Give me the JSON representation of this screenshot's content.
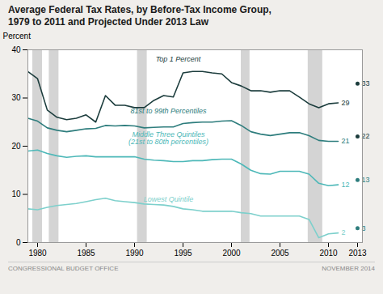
{
  "chart_data": {
    "type": "line",
    "title": "Average Federal Tax Rates, by Before-Tax Income Group,\n1979 to 2011 and Projected Under 2013 Law",
    "ylabel": "Percent",
    "xlim": [
      1979,
      2013.5
    ],
    "ylim": [
      0,
      40
    ],
    "xticks": [
      1980,
      1985,
      1990,
      1995,
      2000,
      2005,
      2010,
      2013
    ],
    "yticks": [
      0,
      10,
      20,
      30,
      40
    ],
    "grid": false,
    "background": "#f0eeeb",
    "plot_background": "#ffffff",
    "band_color": "#d4d4d4",
    "recession_bands": [
      [
        1979.5,
        1980.5
      ],
      [
        1981.2,
        1982.2
      ],
      [
        1990.3,
        1991.3
      ],
      [
        2001.0,
        2001.9
      ],
      [
        2007.9,
        2009.4
      ]
    ],
    "projected_x": 2013,
    "x": [
      1979,
      1980,
      1981,
      1982,
      1983,
      1984,
      1985,
      1986,
      1987,
      1988,
      1989,
      1990,
      1991,
      1992,
      1993,
      1994,
      1995,
      1996,
      1997,
      1998,
      1999,
      2000,
      2001,
      2002,
      2003,
      2004,
      2005,
      2006,
      2007,
      2008,
      2009,
      2010,
      2011
    ],
    "series": [
      {
        "name": "Top 1 Percent",
        "color": "#1c3d3d",
        "label_x": 1994.5,
        "label_y": 37.5,
        "end_2011": 29,
        "projected_value": 33,
        "dot_color": "#1c3d3d",
        "values": [
          35.5,
          34.0,
          27.5,
          26.0,
          25.5,
          25.8,
          26.5,
          25.0,
          30.5,
          28.5,
          28.5,
          28.0,
          28.0,
          29.5,
          30.5,
          30.2,
          35.2,
          35.5,
          35.5,
          35.2,
          35.0,
          33.2,
          32.5,
          31.5,
          31.5,
          31.2,
          31.5,
          31.5,
          30.2,
          28.8,
          28.0,
          28.8,
          29.0
        ]
      },
      {
        "name": "81st to 99th Percentiles",
        "color": "#2e7d7d",
        "label_x": 1993.5,
        "label_y": 26.8,
        "end_2011": 21,
        "projected_value": 22,
        "dot_color": "#1c3d3d",
        "values": [
          25.8,
          25.2,
          23.8,
          23.3,
          23.0,
          23.3,
          23.6,
          23.7,
          24.3,
          24.2,
          24.3,
          24.2,
          23.8,
          23.9,
          24.0,
          24.0,
          24.7,
          24.9,
          25.0,
          25.0,
          25.2,
          25.3,
          24.3,
          23.0,
          22.5,
          22.2,
          22.5,
          22.8,
          22.8,
          22.2,
          21.2,
          21.0,
          21.0
        ]
      },
      {
        "name": "Middle Three Quintiles\n(21st to 80th percentiles)",
        "color": "#4db8b8",
        "label_x": 1993.5,
        "label_y": 20.5,
        "end_2011": 12,
        "projected_value": 13,
        "dot_color": "#2e7d7d",
        "values": [
          19.0,
          19.2,
          18.5,
          18.0,
          17.7,
          17.9,
          18.0,
          17.8,
          17.8,
          17.8,
          17.8,
          17.8,
          17.3,
          17.1,
          17.0,
          16.8,
          16.8,
          17.0,
          17.0,
          17.2,
          17.3,
          17.3,
          16.3,
          15.0,
          14.3,
          14.2,
          14.8,
          14.8,
          14.8,
          14.2,
          12.3,
          11.8,
          12.0
        ]
      },
      {
        "name": "Lowest Quintile",
        "color": "#7dd0cc",
        "label_x": 1993.5,
        "label_y": 8.5,
        "end_2011": 2,
        "projected_value": 3,
        "dot_color": "#2e7d7d",
        "values": [
          7.0,
          6.8,
          7.3,
          7.7,
          7.9,
          8.1,
          8.5,
          8.9,
          9.2,
          8.7,
          8.5,
          8.3,
          8.0,
          7.9,
          7.8,
          7.5,
          7.0,
          6.8,
          6.5,
          6.5,
          6.5,
          6.5,
          6.2,
          6.0,
          5.5,
          5.5,
          5.5,
          5.5,
          5.5,
          4.8,
          1.0,
          1.8,
          2.0
        ]
      }
    ],
    "footer": [
      "CONGRESSIONAL BUDGET OFFICE",
      "NOVEMBER 2014"
    ]
  }
}
